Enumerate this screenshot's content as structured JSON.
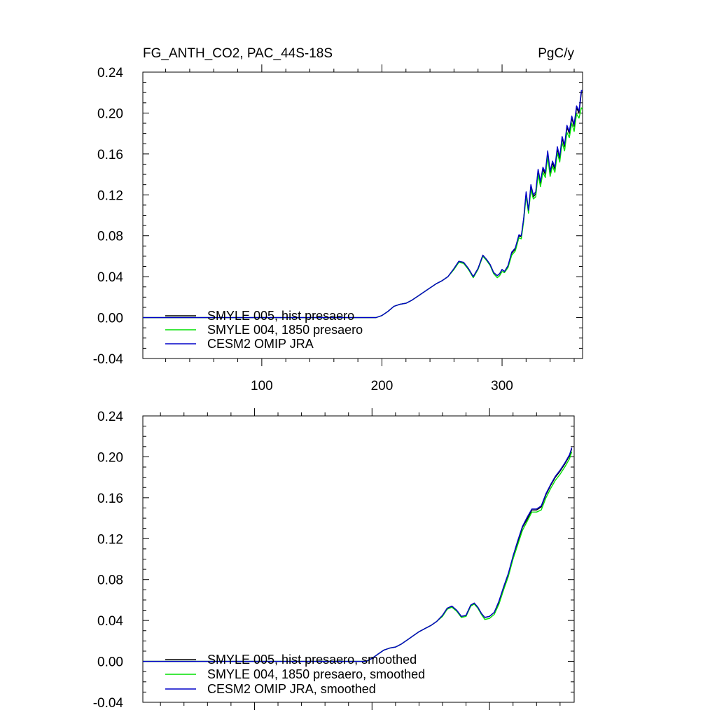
{
  "chart_data": [
    {
      "type": "line",
      "title_left": "FG_ANTH_CO2, PAC_44S-18S",
      "title_right": "PgC/y",
      "xlim": [
        1,
        367
      ],
      "ylim": [
        -0.04,
        0.24
      ],
      "x_ticks": [
        100,
        200,
        300
      ],
      "x_tick_labels": [
        "100",
        "200",
        "300"
      ],
      "y_ticks": [
        -0.04,
        0.0,
        0.04,
        0.08,
        0.12,
        0.16,
        0.2,
        0.24
      ],
      "y_tick_labels": [
        "-0.04",
        "0.00",
        "0.04",
        "0.08",
        "0.12",
        "0.16",
        "0.20",
        "0.24"
      ],
      "legend_position": "bottom-left",
      "series": [
        {
          "name": "SMYLE 005, hist presaero",
          "color": "#000000",
          "x": [
            1,
            180,
            195,
            200,
            205,
            210,
            215,
            220,
            225,
            230,
            235,
            240,
            245,
            250,
            255,
            260,
            264,
            268,
            272,
            276,
            280,
            284,
            287,
            290,
            293,
            296,
            298,
            300,
            302,
            305,
            308,
            311,
            314,
            316,
            318,
            320,
            322,
            324,
            326,
            328,
            330,
            332,
            334,
            336,
            338,
            340,
            342,
            344,
            346,
            348,
            350,
            352,
            354,
            356,
            358,
            360,
            362,
            364,
            366,
            367
          ],
          "values": [
            0.0,
            0.0,
            0.0,
            0.002,
            0.006,
            0.011,
            0.013,
            0.014,
            0.017,
            0.021,
            0.025,
            0.029,
            0.033,
            0.036,
            0.04,
            0.048,
            0.055,
            0.054,
            0.048,
            0.04,
            0.048,
            0.061,
            0.057,
            0.052,
            0.044,
            0.041,
            0.043,
            0.047,
            0.045,
            0.05,
            0.063,
            0.067,
            0.08,
            0.079,
            0.096,
            0.121,
            0.104,
            0.128,
            0.118,
            0.121,
            0.143,
            0.131,
            0.145,
            0.14,
            0.16,
            0.141,
            0.151,
            0.145,
            0.165,
            0.155,
            0.175,
            0.167,
            0.186,
            0.18,
            0.195,
            0.187,
            0.205,
            0.2,
            0.22,
            0.221
          ]
        },
        {
          "name": "SMYLE 004, 1850 presaero",
          "color": "#00e000",
          "x": [
            1,
            180,
            195,
            200,
            205,
            210,
            215,
            220,
            225,
            230,
            235,
            240,
            245,
            250,
            255,
            260,
            264,
            268,
            272,
            276,
            280,
            284,
            287,
            290,
            293,
            296,
            298,
            300,
            302,
            305,
            308,
            311,
            314,
            316,
            318,
            320,
            322,
            324,
            326,
            328,
            330,
            332,
            334,
            336,
            338,
            340,
            342,
            344,
            346,
            348,
            350,
            352,
            354,
            356,
            358,
            360,
            362,
            364,
            366,
            367
          ],
          "values": [
            0.0,
            0.0,
            0.0,
            0.002,
            0.006,
            0.011,
            0.013,
            0.014,
            0.017,
            0.021,
            0.025,
            0.029,
            0.033,
            0.036,
            0.04,
            0.047,
            0.054,
            0.053,
            0.047,
            0.039,
            0.047,
            0.06,
            0.056,
            0.051,
            0.043,
            0.039,
            0.041,
            0.045,
            0.044,
            0.049,
            0.061,
            0.065,
            0.078,
            0.077,
            0.094,
            0.119,
            0.102,
            0.125,
            0.116,
            0.118,
            0.14,
            0.128,
            0.142,
            0.137,
            0.157,
            0.138,
            0.148,
            0.142,
            0.161,
            0.152,
            0.171,
            0.163,
            0.181,
            0.176,
            0.19,
            0.182,
            0.199,
            0.195,
            0.205,
            0.204
          ]
        },
        {
          "name": "CESM2 OMIP JRA",
          "color": "#0000c8",
          "x": [
            1,
            180,
            195,
            200,
            205,
            210,
            215,
            220,
            225,
            230,
            235,
            240,
            245,
            250,
            255,
            260,
            264,
            268,
            272,
            276,
            280,
            284,
            287,
            290,
            293,
            296,
            298,
            300,
            302,
            305,
            308,
            311,
            314,
            316,
            318,
            320,
            322,
            324,
            326,
            328,
            330,
            332,
            334,
            336,
            338,
            340,
            342,
            344,
            346,
            348,
            350,
            352,
            354,
            356,
            358,
            360,
            362,
            364,
            366,
            367
          ],
          "values": [
            0.0,
            0.0,
            0.0,
            0.002,
            0.006,
            0.011,
            0.013,
            0.014,
            0.017,
            0.021,
            0.025,
            0.029,
            0.033,
            0.036,
            0.04,
            0.048,
            0.055,
            0.054,
            0.048,
            0.04,
            0.048,
            0.061,
            0.057,
            0.052,
            0.044,
            0.041,
            0.043,
            0.047,
            0.045,
            0.051,
            0.064,
            0.068,
            0.081,
            0.08,
            0.097,
            0.123,
            0.105,
            0.13,
            0.12,
            0.123,
            0.145,
            0.133,
            0.147,
            0.142,
            0.163,
            0.143,
            0.153,
            0.147,
            0.167,
            0.157,
            0.177,
            0.169,
            0.188,
            0.182,
            0.197,
            0.189,
            0.207,
            0.202,
            0.222,
            0.222
          ]
        }
      ]
    },
    {
      "type": "line",
      "xlim": [
        5,
        372
      ],
      "ylim": [
        -0.04,
        0.24
      ],
      "x_ticks": [
        100,
        200,
        300
      ],
      "y_ticks": [
        -0.04,
        0.0,
        0.04,
        0.08,
        0.12,
        0.16,
        0.2,
        0.24
      ],
      "y_tick_labels": [
        "-0.04",
        "0.00",
        "0.04",
        "0.08",
        "0.12",
        "0.16",
        "0.20",
        "0.24"
      ],
      "legend_position": "bottom-left",
      "series": [
        {
          "name": "SMYLE 005, hist presaero, smoothed",
          "color": "#000000",
          "x": [
            5,
            180,
            195,
            200,
            205,
            210,
            215,
            220,
            225,
            230,
            235,
            240,
            245,
            250,
            255,
            260,
            264,
            268,
            272,
            276,
            280,
            284,
            287,
            290,
            293,
            296,
            300,
            304,
            308,
            312,
            316,
            320,
            324,
            328,
            332,
            336,
            340,
            344,
            348,
            352,
            356,
            360,
            364,
            368,
            370
          ],
          "values": [
            0.0,
            0.0,
            0.0,
            0.003,
            0.007,
            0.011,
            0.013,
            0.014,
            0.017,
            0.021,
            0.025,
            0.029,
            0.032,
            0.035,
            0.039,
            0.045,
            0.052,
            0.054,
            0.05,
            0.044,
            0.045,
            0.055,
            0.057,
            0.053,
            0.047,
            0.043,
            0.044,
            0.048,
            0.058,
            0.072,
            0.085,
            0.102,
            0.116,
            0.131,
            0.139,
            0.148,
            0.148,
            0.151,
            0.163,
            0.172,
            0.18,
            0.186,
            0.193,
            0.201,
            0.208
          ]
        },
        {
          "name": "SMYLE 004, 1850 presaero, smoothed",
          "color": "#00e000",
          "x": [
            5,
            180,
            195,
            200,
            205,
            210,
            215,
            220,
            225,
            230,
            235,
            240,
            245,
            250,
            255,
            260,
            264,
            268,
            272,
            276,
            280,
            284,
            287,
            290,
            293,
            296,
            300,
            304,
            308,
            312,
            316,
            320,
            324,
            328,
            332,
            336,
            340,
            344,
            348,
            352,
            356,
            360,
            364,
            368,
            370
          ],
          "values": [
            0.0,
            0.0,
            0.0,
            0.003,
            0.007,
            0.011,
            0.013,
            0.014,
            0.017,
            0.021,
            0.025,
            0.029,
            0.032,
            0.035,
            0.039,
            0.044,
            0.051,
            0.053,
            0.049,
            0.043,
            0.044,
            0.054,
            0.056,
            0.052,
            0.046,
            0.041,
            0.042,
            0.046,
            0.056,
            0.07,
            0.083,
            0.1,
            0.114,
            0.128,
            0.137,
            0.146,
            0.146,
            0.148,
            0.16,
            0.169,
            0.177,
            0.183,
            0.19,
            0.198,
            0.205
          ]
        },
        {
          "name": "CESM2 OMIP JRA, smoothed",
          "color": "#0000c8",
          "x": [
            5,
            180,
            195,
            200,
            205,
            210,
            215,
            220,
            225,
            230,
            235,
            240,
            245,
            250,
            255,
            260,
            264,
            268,
            272,
            276,
            280,
            284,
            287,
            290,
            293,
            296,
            300,
            304,
            308,
            312,
            316,
            320,
            324,
            328,
            332,
            336,
            340,
            344,
            348,
            352,
            356,
            360,
            364,
            368,
            370
          ],
          "values": [
            0.0,
            0.0,
            0.0,
            0.003,
            0.007,
            0.011,
            0.013,
            0.014,
            0.017,
            0.021,
            0.025,
            0.029,
            0.032,
            0.035,
            0.039,
            0.045,
            0.052,
            0.054,
            0.05,
            0.044,
            0.045,
            0.055,
            0.057,
            0.053,
            0.047,
            0.043,
            0.044,
            0.048,
            0.059,
            0.073,
            0.086,
            0.103,
            0.118,
            0.132,
            0.141,
            0.149,
            0.149,
            0.152,
            0.164,
            0.173,
            0.181,
            0.187,
            0.194,
            0.202,
            0.209
          ]
        }
      ]
    }
  ]
}
